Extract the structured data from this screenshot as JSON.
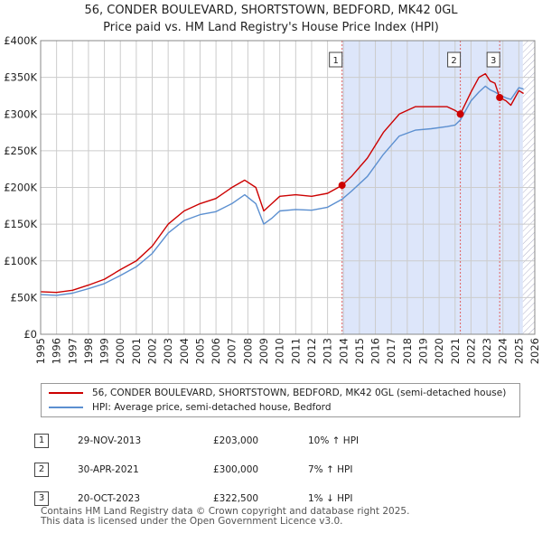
{
  "title": "56, CONDER BOULEVARD, SHORTSTOWN, BEDFORD, MK42 0GL",
  "subtitle": "Price paid vs. HM Land Registry's House Price Index (HPI)",
  "colors": {
    "property": "#cc0000",
    "hpi": "#5b8fd0",
    "shade": "#dde6fa",
    "hatch": "#b0b0c8"
  },
  "chart_data": {
    "type": "line",
    "xlim": [
      1995,
      2026
    ],
    "ylim": [
      0,
      400000
    ],
    "x_ticks": [
      "1995",
      "1996",
      "1997",
      "1998",
      "1999",
      "2000",
      "2001",
      "2002",
      "2003",
      "2004",
      "2005",
      "2006",
      "2007",
      "2008",
      "2009",
      "2010",
      "2011",
      "2012",
      "2013",
      "2014",
      "2015",
      "2016",
      "2017",
      "2018",
      "2019",
      "2020",
      "2021",
      "2022",
      "2023",
      "2024",
      "2025",
      "2026"
    ],
    "y_ticks": [
      {
        "value": 0,
        "label": "£0"
      },
      {
        "value": 50000,
        "label": "£50K"
      },
      {
        "value": 100000,
        "label": "£100K"
      },
      {
        "value": 150000,
        "label": "£150K"
      },
      {
        "value": 200000,
        "label": "£200K"
      },
      {
        "value": 250000,
        "label": "£250K"
      },
      {
        "value": 300000,
        "label": "£300K"
      },
      {
        "value": 350000,
        "label": "£350K"
      },
      {
        "value": 400000,
        "label": "£400K"
      }
    ],
    "grid": true,
    "series": [
      {
        "name": "56, CONDER BOULEVARD, SHORTSTOWN, BEDFORD, MK42 0GL (semi-detached house)",
        "points": [
          [
            1995.0,
            58000
          ],
          [
            1996.0,
            57000
          ],
          [
            1997.0,
            60000
          ],
          [
            1998.0,
            67000
          ],
          [
            1999.0,
            75000
          ],
          [
            2000.0,
            88000
          ],
          [
            2001.0,
            100000
          ],
          [
            2002.0,
            120000
          ],
          [
            2003.0,
            150000
          ],
          [
            2004.0,
            168000
          ],
          [
            2005.0,
            178000
          ],
          [
            2006.0,
            185000
          ],
          [
            2007.0,
            200000
          ],
          [
            2007.8,
            210000
          ],
          [
            2008.5,
            200000
          ],
          [
            2009.0,
            168000
          ],
          [
            2009.5,
            178000
          ],
          [
            2010.0,
            188000
          ],
          [
            2011.0,
            190000
          ],
          [
            2012.0,
            188000
          ],
          [
            2013.0,
            192000
          ],
          [
            2013.91,
            203000
          ],
          [
            2014.5,
            215000
          ],
          [
            2015.5,
            240000
          ],
          [
            2016.5,
            275000
          ],
          [
            2017.5,
            300000
          ],
          [
            2018.5,
            310000
          ],
          [
            2019.5,
            310000
          ],
          [
            2020.5,
            310000
          ],
          [
            2021.0,
            305000
          ],
          [
            2021.33,
            300000
          ],
          [
            2022.0,
            330000
          ],
          [
            2022.5,
            350000
          ],
          [
            2022.9,
            355000
          ],
          [
            2023.2,
            345000
          ],
          [
            2023.5,
            342000
          ],
          [
            2023.8,
            322500
          ],
          [
            2024.2,
            318000
          ],
          [
            2024.5,
            312000
          ],
          [
            2025.0,
            332000
          ],
          [
            2025.3,
            328000
          ]
        ]
      },
      {
        "name": "HPI: Average price, semi-detached house, Bedford",
        "points": [
          [
            1995.0,
            54000
          ],
          [
            1996.0,
            53000
          ],
          [
            1997.0,
            56000
          ],
          [
            1998.0,
            62000
          ],
          [
            1999.0,
            69000
          ],
          [
            2000.0,
            80000
          ],
          [
            2001.0,
            92000
          ],
          [
            2002.0,
            110000
          ],
          [
            2003.0,
            138000
          ],
          [
            2004.0,
            155000
          ],
          [
            2005.0,
            163000
          ],
          [
            2006.0,
            167000
          ],
          [
            2007.0,
            178000
          ],
          [
            2007.8,
            190000
          ],
          [
            2008.5,
            178000
          ],
          [
            2009.0,
            150000
          ],
          [
            2009.5,
            158000
          ],
          [
            2010.0,
            168000
          ],
          [
            2011.0,
            170000
          ],
          [
            2012.0,
            169000
          ],
          [
            2013.0,
            173000
          ],
          [
            2013.91,
            184000
          ],
          [
            2014.5,
            195000
          ],
          [
            2015.5,
            215000
          ],
          [
            2016.5,
            245000
          ],
          [
            2017.5,
            270000
          ],
          [
            2018.5,
            278000
          ],
          [
            2019.5,
            280000
          ],
          [
            2020.5,
            283000
          ],
          [
            2021.0,
            285000
          ],
          [
            2021.33,
            292000
          ],
          [
            2022.0,
            318000
          ],
          [
            2022.5,
            330000
          ],
          [
            2022.9,
            338000
          ],
          [
            2023.2,
            333000
          ],
          [
            2023.5,
            330000
          ],
          [
            2023.8,
            326000
          ],
          [
            2024.2,
            322000
          ],
          [
            2024.5,
            320000
          ],
          [
            2025.0,
            336000
          ],
          [
            2025.3,
            334000
          ]
        ]
      }
    ],
    "sales": [
      {
        "label": "1",
        "x": 2013.91,
        "y": 203000
      },
      {
        "label": "2",
        "x": 2021.33,
        "y": 300000
      },
      {
        "label": "3",
        "x": 2023.8,
        "y": 322500
      }
    ],
    "shaded_region": [
      2013.91,
      2025.25
    ],
    "future_hatch_from": 2025.25
  },
  "legend": [
    {
      "label": "56, CONDER BOULEVARD, SHORTSTOWN, BEDFORD, MK42 0GL (semi-detached house)"
    },
    {
      "label": "HPI: Average price, semi-detached house, Bedford"
    }
  ],
  "sales_table": [
    {
      "num": "1",
      "date": "29-NOV-2013",
      "price": "£203,000",
      "hpi": "10% ↑ HPI"
    },
    {
      "num": "2",
      "date": "30-APR-2021",
      "price": "£300,000",
      "hpi": "7% ↑ HPI"
    },
    {
      "num": "3",
      "date": "20-OCT-2023",
      "price": "£322,500",
      "hpi": "1% ↓ HPI"
    }
  ],
  "footer": [
    "Contains HM Land Registry data © Crown copyright and database right 2025.",
    "This data is licensed under the Open Government Licence v3.0."
  ]
}
